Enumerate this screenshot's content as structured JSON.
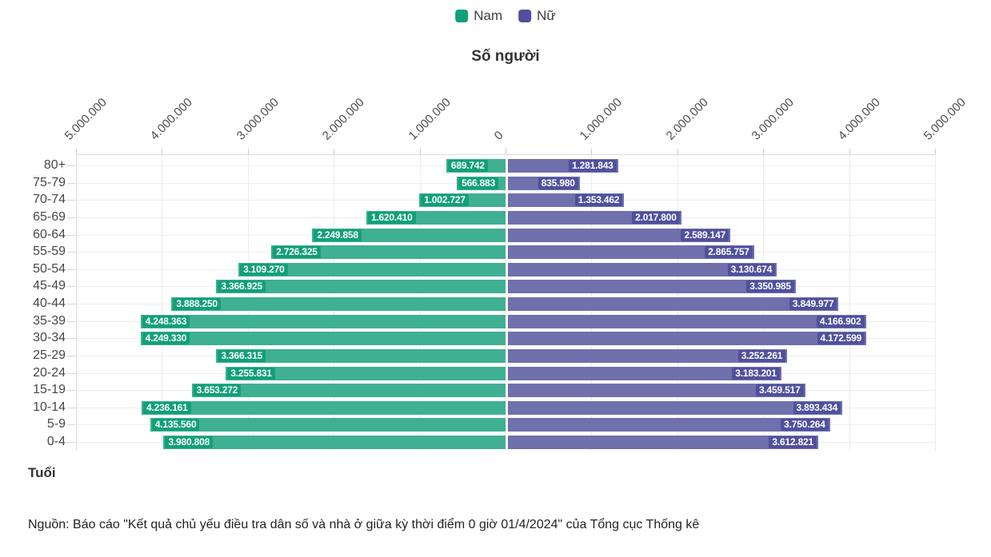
{
  "legend": {
    "items": [
      {
        "label": "Nam",
        "color": "#11a078",
        "bar_color": "#3fb092"
      },
      {
        "label": "Nữ",
        "color": "#4f519d",
        "bar_color": "#6f70ac"
      }
    ]
  },
  "chart_data": {
    "type": "bar",
    "variant": "population_pyramid",
    "title": "Số người",
    "xlabel": "Số người",
    "ylabel": "Tuổi",
    "legend_position": "top-center",
    "grid": true,
    "axis_max": 5000000,
    "x_ticks": {
      "labels": [
        "5.000.000",
        "4.000.000",
        "3.000.000",
        "2.000.000",
        "1.000.000",
        "0",
        "1.000.000",
        "2.000.000",
        "3.000.000",
        "4.000.000",
        "5.000.000"
      ]
    },
    "categories": [
      "80+",
      "75-79",
      "70-74",
      "65-69",
      "60-64",
      "55-59",
      "50-54",
      "45-49",
      "40-44",
      "35-39",
      "30-34",
      "25-29",
      "20-24",
      "15-19",
      "10-14",
      "5-9",
      "0-4"
    ],
    "series": [
      {
        "name": "Nam",
        "side": "left",
        "color": "#11a078",
        "bar_color": "#3fb092",
        "values": [
          689742,
          566883,
          1002727,
          1620410,
          2249858,
          2726325,
          3109270,
          3366925,
          3888250,
          4248363,
          4249330,
          3366315,
          3255831,
          3653272,
          4236161,
          4135560,
          3980808
        ],
        "labels": [
          "689.742",
          "566.883",
          "1.002.727",
          "1.620.410",
          "2.249.858",
          "2.726.325",
          "3.109.270",
          "3.366.925",
          "3.888.250",
          "4.248.363",
          "4.249.330",
          "3.366.315",
          "3.255.831",
          "3.653.272",
          "4.236.161",
          "4.135.560",
          "3.980.808"
        ]
      },
      {
        "name": "Nữ",
        "side": "right",
        "color": "#4f519d",
        "bar_color": "#6f70ac",
        "values": [
          1281843,
          835980,
          1353462,
          2017800,
          2589147,
          2865757,
          3130674,
          3350985,
          3849977,
          4166902,
          4172599,
          3252261,
          3183201,
          3459517,
          3893434,
          3750264,
          3612821
        ],
        "labels": [
          "1.281.843",
          "835.980",
          "1.353.462",
          "2.017.800",
          "2.589.147",
          "2.865.757",
          "3.130.674",
          "3.350.985",
          "3.849.977",
          "4.166.902",
          "4.172.599",
          "3.252.261",
          "3.183.201",
          "3.459.517",
          "3.893.434",
          "3.750.264",
          "3.612.821"
        ]
      }
    ],
    "source": "Nguồn: Báo cáo \"Kết quả chủ yếu điều tra dân số và nhà ở giữa kỳ thời điểm 0 giờ 01/4/2024\" của Tổng cục Thống kê"
  }
}
